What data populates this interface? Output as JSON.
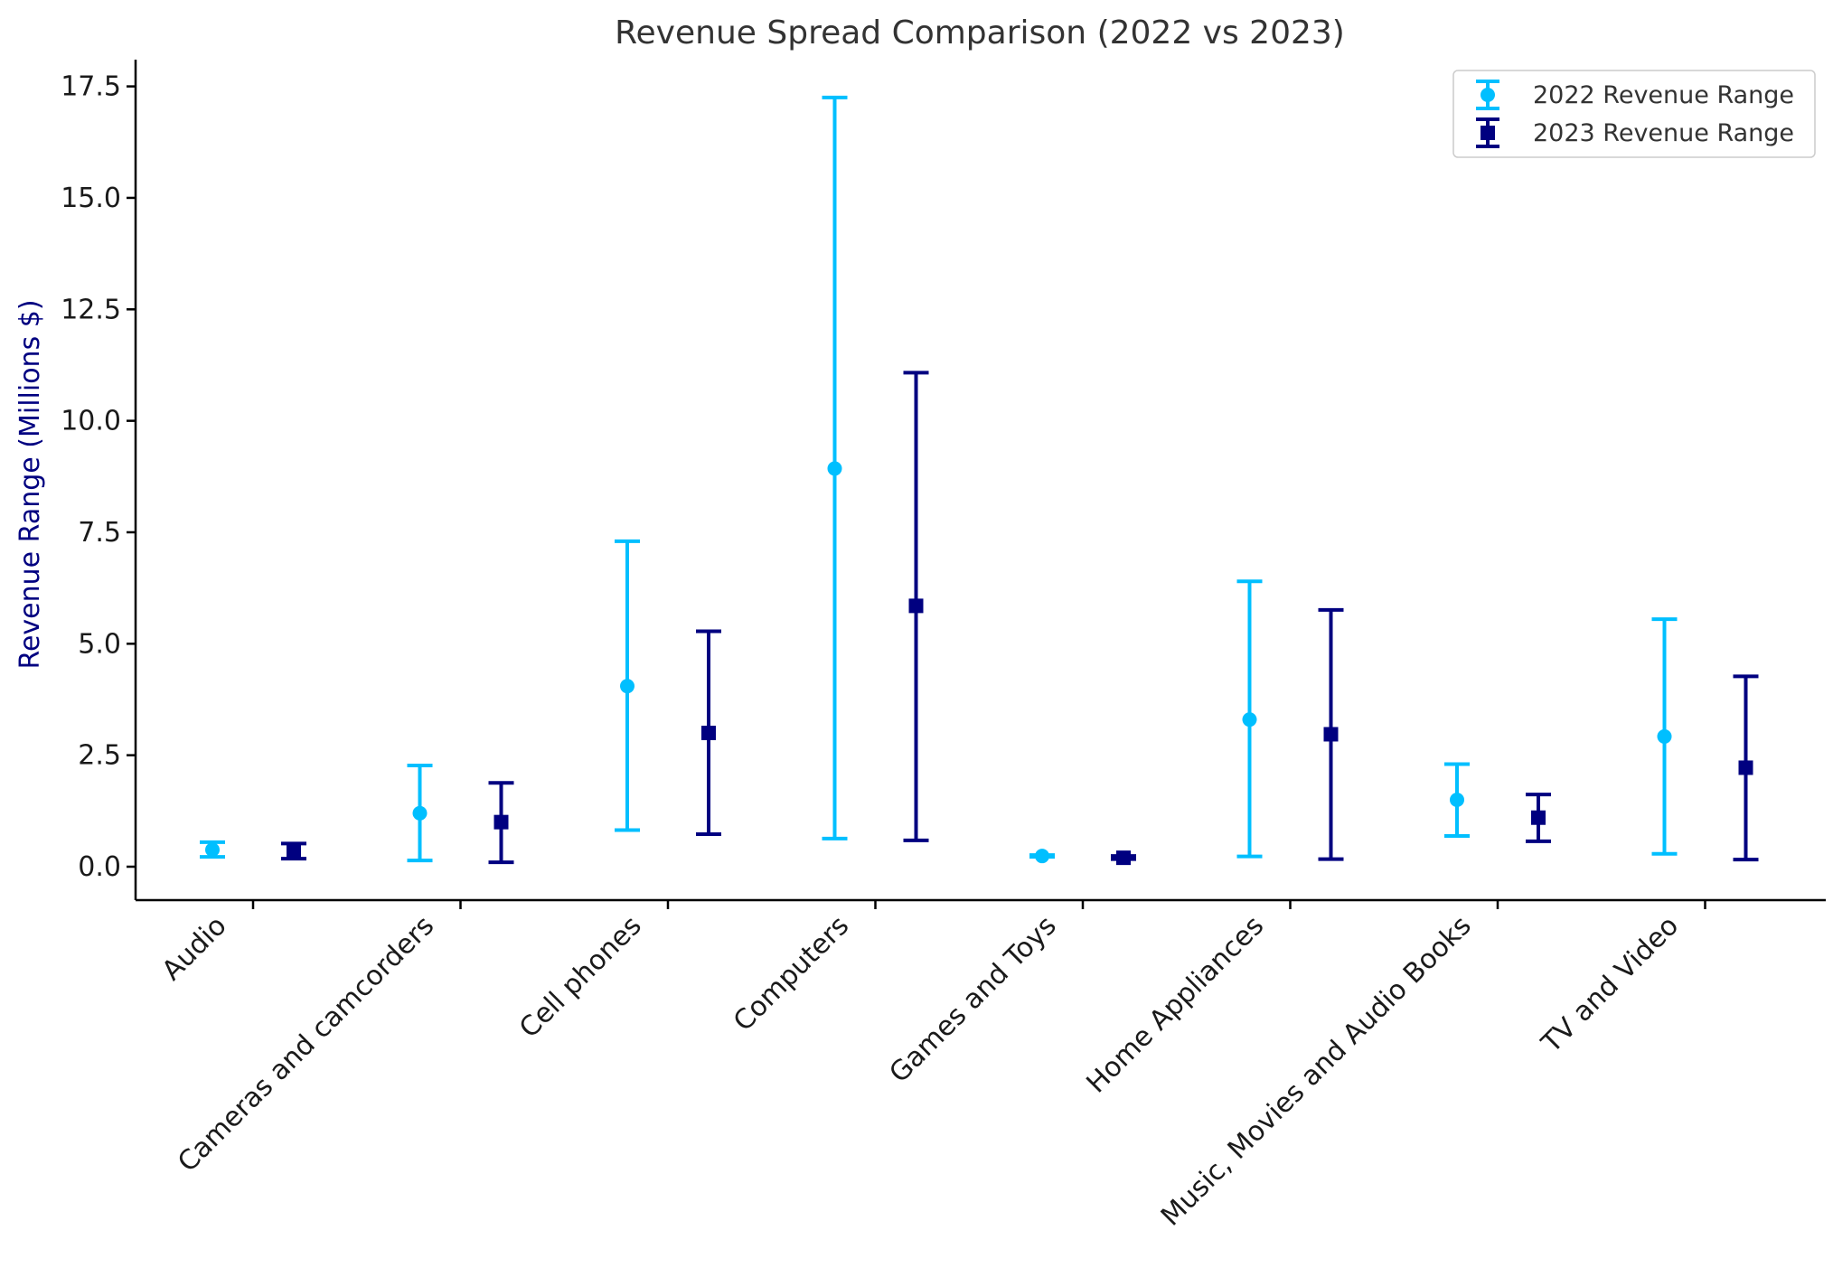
{
  "chart_data": {
    "type": "errorbar",
    "title": "Revenue Spread Comparison (2022 vs 2023)",
    "xlabel": "",
    "ylabel": "Revenue Range (Millions $)",
    "ylim": [
      -0.75,
      18.1
    ],
    "yticks": [
      0.0,
      2.5,
      5.0,
      7.5,
      10.0,
      12.5,
      15.0,
      17.5
    ],
    "ytick_labels": [
      "0.0",
      "2.5",
      "5.0",
      "7.5",
      "10.0",
      "12.5",
      "15.0",
      "17.5"
    ],
    "categories": [
      "Audio",
      "Cameras and camcorders",
      "Cell phones",
      "Computers",
      "Games and Toys",
      "Home Appliances",
      "Music, Movies and Audio Books",
      "TV and Video"
    ],
    "grid": false,
    "legend_position": "top-right",
    "series": [
      {
        "name": "2022 Revenue Range",
        "color": "#00BFFF",
        "marker": "circle",
        "center": [
          0.38,
          1.2,
          4.05,
          8.93,
          0.24,
          3.3,
          1.5,
          2.92
        ],
        "low": [
          0.22,
          0.14,
          0.82,
          0.63,
          0.22,
          0.23,
          0.69,
          0.29
        ],
        "high": [
          0.55,
          2.27,
          7.3,
          17.25,
          0.26,
          6.4,
          2.3,
          5.55
        ]
      },
      {
        "name": "2023 Revenue Range",
        "color": "#000080",
        "marker": "square",
        "center": [
          0.36,
          1.0,
          3.0,
          5.85,
          0.2,
          2.97,
          1.1,
          2.22
        ],
        "low": [
          0.18,
          0.1,
          0.73,
          0.59,
          0.17,
          0.17,
          0.57,
          0.16
        ],
        "high": [
          0.52,
          1.88,
          5.28,
          11.08,
          0.24,
          5.76,
          1.62,
          4.27
        ]
      }
    ]
  }
}
